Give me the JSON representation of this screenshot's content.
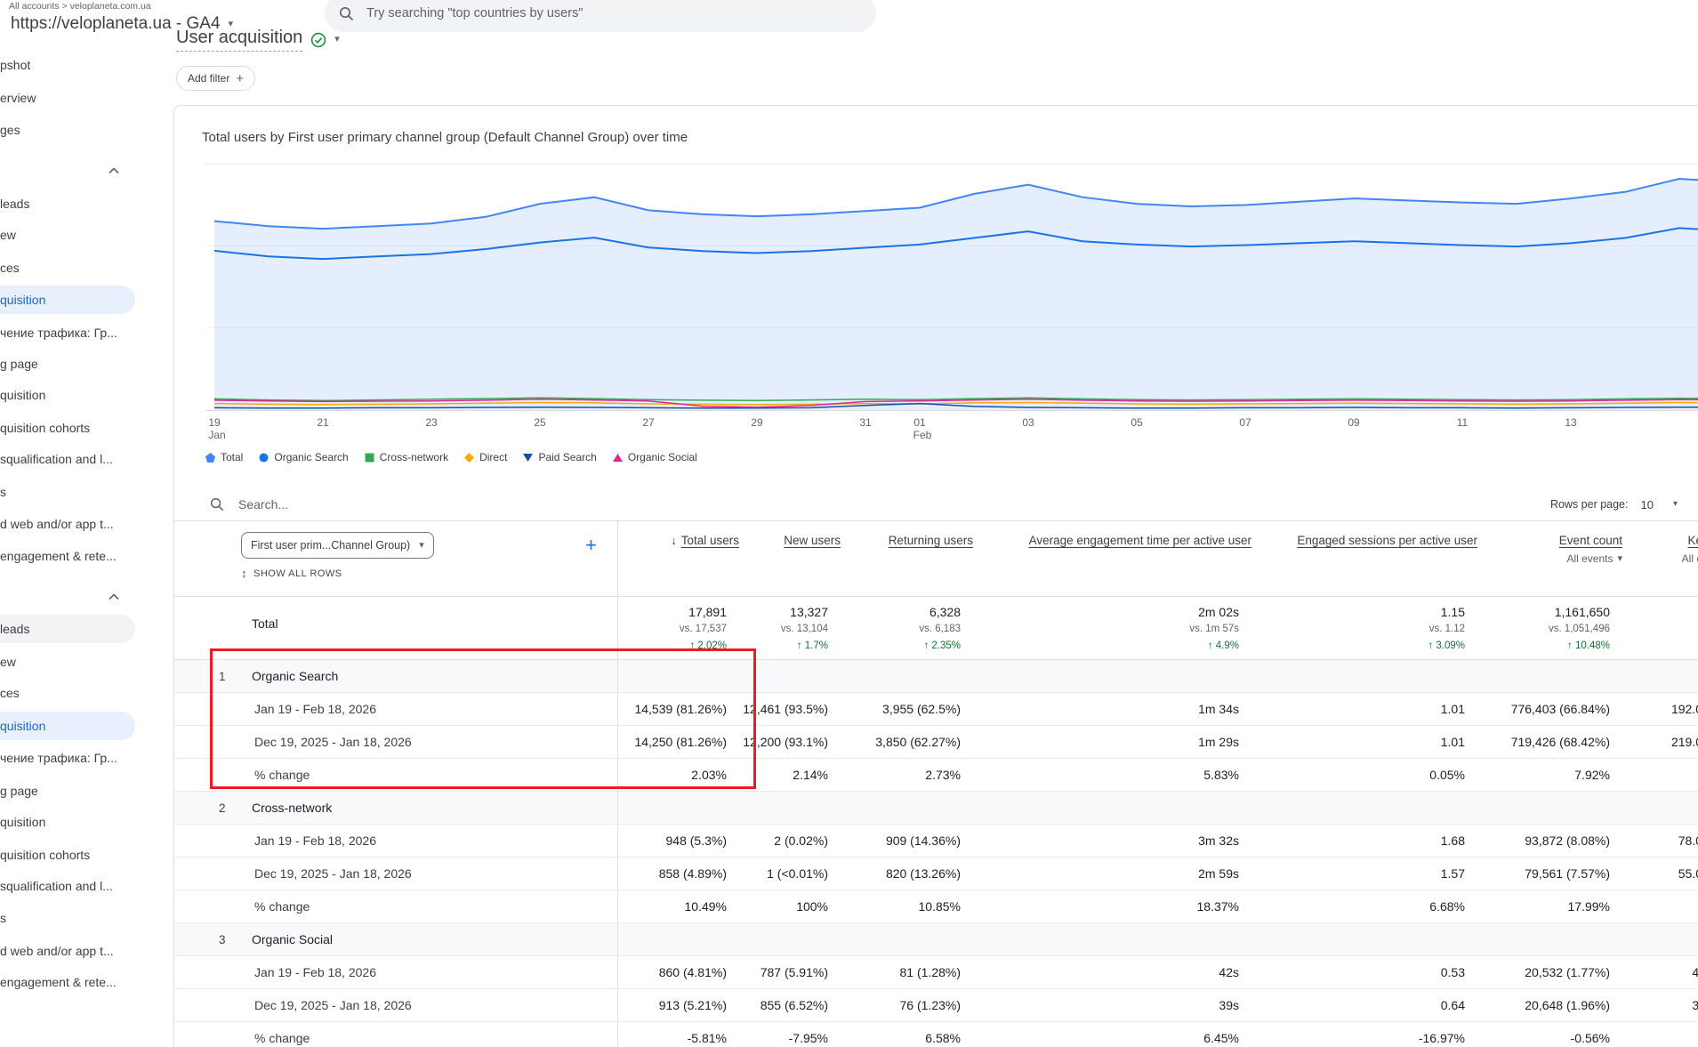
{
  "colors": {
    "accent_blue": "#1a73e8",
    "active_pill": "#e8f0fe",
    "positive_green": "#137333",
    "annotation_red": "#ee1b24"
  },
  "icons": {
    "caret_down": "▾",
    "sort_desc": "↓",
    "unfold": "↕",
    "plus": "+"
  },
  "header": {
    "breadcrumb": "All accounts > veloplaneta.com.ua",
    "property": "https://veloplaneta.ua - GA4",
    "search_placeholder": "Try searching \"top countries by users\""
  },
  "sidebar": {
    "items": [
      {
        "label": "pshot"
      },
      {
        "label": "erview"
      },
      {
        "label": "ges"
      },
      {
        "label": ""
      },
      {
        "label": "leads"
      },
      {
        "label": "ew"
      },
      {
        "label": "ces"
      },
      {
        "label": "quisition"
      },
      {
        "label": "чение трафика: Гр..."
      },
      {
        "label": "g page"
      },
      {
        "label": "quisition"
      },
      {
        "label": "quisition cohorts"
      },
      {
        "label": "squalification and l..."
      },
      {
        "label": "s"
      },
      {
        "label": "d web and/or app t..."
      },
      {
        "label": "engagement & rete..."
      },
      {
        "label": ""
      },
      {
        "label": "leads"
      },
      {
        "label": "ew"
      },
      {
        "label": "ces"
      },
      {
        "label": "quisition"
      },
      {
        "label": "чение трафика: Гр..."
      },
      {
        "label": "g page"
      },
      {
        "label": "quisition"
      },
      {
        "label": "quisition cohorts"
      },
      {
        "label": "squalification and l..."
      },
      {
        "label": "s"
      },
      {
        "label": "d web and/or app t..."
      },
      {
        "label": "engagement & rete..."
      }
    ]
  },
  "report": {
    "title": "User acquisition",
    "add_filter_label": "Add filter"
  },
  "chart": {
    "title": "Total users by First user primary channel group (Default Channel Group) over time",
    "y_max": 750,
    "x_tick_days": [
      0,
      2,
      4,
      6,
      8,
      10,
      12,
      13,
      15,
      17,
      19,
      21,
      23,
      25
    ],
    "x_tick_labels": [
      "19",
      "21",
      "23",
      "25",
      "27",
      "29",
      "31",
      "01",
      "03",
      "05",
      "07",
      "09",
      "11",
      "13"
    ],
    "x_tick_sublabels": [
      "Jan",
      "",
      "",
      "",
      "",
      "",
      "",
      "Feb",
      "",
      "",
      "",
      "",
      "",
      ""
    ],
    "series": [
      {
        "name": "Total",
        "color": "#4285f4",
        "area": "rgba(66,133,244,0.14)",
        "values": [
          575,
          560,
          552,
          560,
          568,
          588,
          628,
          648,
          608,
          596,
          590,
          596,
          606,
          616,
          658,
          686,
          648,
          628,
          620,
          624,
          634,
          644,
          638,
          632,
          628,
          644,
          664,
          704,
          694,
          684,
          704
        ]
      },
      {
        "name": "Organic Search",
        "color": "#1a73e8",
        "values": [
          485,
          468,
          460,
          468,
          475,
          490,
          510,
          525,
          495,
          484,
          478,
          484,
          494,
          504,
          524,
          544,
          514,
          504,
          498,
          502,
          508,
          514,
          508,
          502,
          498,
          508,
          524,
          554,
          544,
          538,
          554
        ]
      },
      {
        "name": "Cross-network",
        "color": "#34a853",
        "values": [
          34,
          31,
          29,
          31,
          33,
          35,
          37,
          35,
          32,
          30,
          29,
          31,
          33,
          32,
          35,
          37,
          34,
          32,
          31,
          32,
          33,
          34,
          33,
          32,
          31,
          32,
          34,
          36,
          35,
          34,
          35
        ]
      },
      {
        "name": "Direct",
        "color": "#f9ab00",
        "values": [
          20,
          18,
          17,
          18,
          19,
          21,
          23,
          22,
          19,
          18,
          17,
          18,
          20,
          19,
          22,
          23,
          21,
          19,
          18,
          19,
          20,
          21,
          20,
          19,
          18,
          19,
          21,
          23,
          22,
          21,
          22
        ]
      },
      {
        "name": "Paid Search",
        "color": "#174ea6",
        "values": [
          7,
          6,
          6,
          7,
          7,
          8,
          9,
          8,
          7,
          6,
          6,
          7,
          14,
          20,
          11,
          8,
          7,
          6,
          6,
          7,
          7,
          8,
          7,
          7,
          6,
          7,
          8,
          9,
          8,
          7,
          8
        ]
      },
      {
        "name": "Organic Social",
        "color": "#e52592",
        "values": [
          30,
          28,
          26,
          27,
          28,
          30,
          33,
          31,
          28,
          12,
          9,
          14,
          26,
          28,
          31,
          33,
          30,
          28,
          27,
          28,
          29,
          30,
          29,
          28,
          27,
          28,
          30,
          32,
          31,
          30,
          31
        ]
      }
    ]
  },
  "table": {
    "search_placeholder": "Search...",
    "rows_per_page_label": "Rows per page:",
    "rows_per_page_value": "10",
    "dimension_chip": "First user prim...Channel Group)",
    "show_all_rows_label": "SHOW ALL ROWS",
    "columns": [
      {
        "label": "Total users"
      },
      {
        "label": "New users"
      },
      {
        "label": "Returning users"
      },
      {
        "label": "Average engagement time per active user"
      },
      {
        "label": "Engaged sessions per active user"
      },
      {
        "label": "Event count",
        "sub": "All events"
      },
      {
        "label": "Ke",
        "sub": "All e"
      }
    ],
    "totals": {
      "label": "Total",
      "cells": [
        {
          "value": "17,891",
          "vs": "vs. 17,537",
          "change": "↑ 2.02%"
        },
        {
          "value": "13,327",
          "vs": "vs. 13,104",
          "change": "↑ 1.7%"
        },
        {
          "value": "6,328",
          "vs": "vs. 6,183",
          "change": "↑ 2.35%"
        },
        {
          "value": "2m 02s",
          "vs": "vs. 1m 57s",
          "change": "↑ 4.9%"
        },
        {
          "value": "1.15",
          "vs": "vs. 1.12",
          "change": "↑ 3.09%"
        },
        {
          "value": "1,161,650",
          "vs": "vs. 1,051,496",
          "change": "↑ 10.48%"
        }
      ]
    },
    "groups": [
      {
        "index": "1",
        "name": "Organic Search",
        "rows": [
          {
            "label": "Jan 19 - Feb 18, 2026",
            "cells": [
              "14,539 (81.26%)",
              "12,461 (93.5%)",
              "3,955 (62.5%)",
              "1m 34s",
              "1.01",
              "776,403 (66.84%)",
              "192.0"
            ]
          },
          {
            "label": "Dec 19, 2025 - Jan 18, 2026",
            "cells": [
              "14,250 (81.26%)",
              "12,200 (93.1%)",
              "3,850 (62.27%)",
              "1m 29s",
              "1.01",
              "719,426 (68.42%)",
              "219.0"
            ]
          }
        ],
        "change": {
          "label": "% change",
          "cells": [
            "2.03%",
            "2.14%",
            "2.73%",
            "5.83%",
            "0.05%",
            "7.92%",
            ""
          ]
        }
      },
      {
        "index": "2",
        "name": "Cross-network",
        "rows": [
          {
            "label": "Jan 19 - Feb 18, 2026",
            "cells": [
              "948 (5.3%)",
              "2 (0.02%)",
              "909 (14.36%)",
              "3m 32s",
              "1.68",
              "93,872 (8.08%)",
              "78.0"
            ]
          },
          {
            "label": "Dec 19, 2025 - Jan 18, 2026",
            "cells": [
              "858 (4.89%)",
              "1 (<0.01%)",
              "820 (13.26%)",
              "2m 59s",
              "1.57",
              "79,561 (7.57%)",
              "55.0"
            ]
          }
        ],
        "change": {
          "label": "% change",
          "cells": [
            "10.49%",
            "100%",
            "10.85%",
            "18.37%",
            "6.68%",
            "17.99%",
            ""
          ]
        }
      },
      {
        "index": "3",
        "name": "Organic Social",
        "rows": [
          {
            "label": "Jan 19 - Feb 18, 2026",
            "cells": [
              "860 (4.81%)",
              "787 (5.91%)",
              "81 (1.28%)",
              "42s",
              "0.53",
              "20,532 (1.77%)",
              "4."
            ]
          },
          {
            "label": "Dec 19, 2025 - Jan 18, 2026",
            "cells": [
              "913 (5.21%)",
              "855 (6.52%)",
              "76 (1.23%)",
              "39s",
              "0.64",
              "20,648 (1.96%)",
              "3."
            ]
          }
        ],
        "change": {
          "label": "% change",
          "cells": [
            "-5.81%",
            "-7.95%",
            "6.58%",
            "6.45%",
            "-16.97%",
            "-0.56%",
            ""
          ]
        }
      }
    ]
  }
}
